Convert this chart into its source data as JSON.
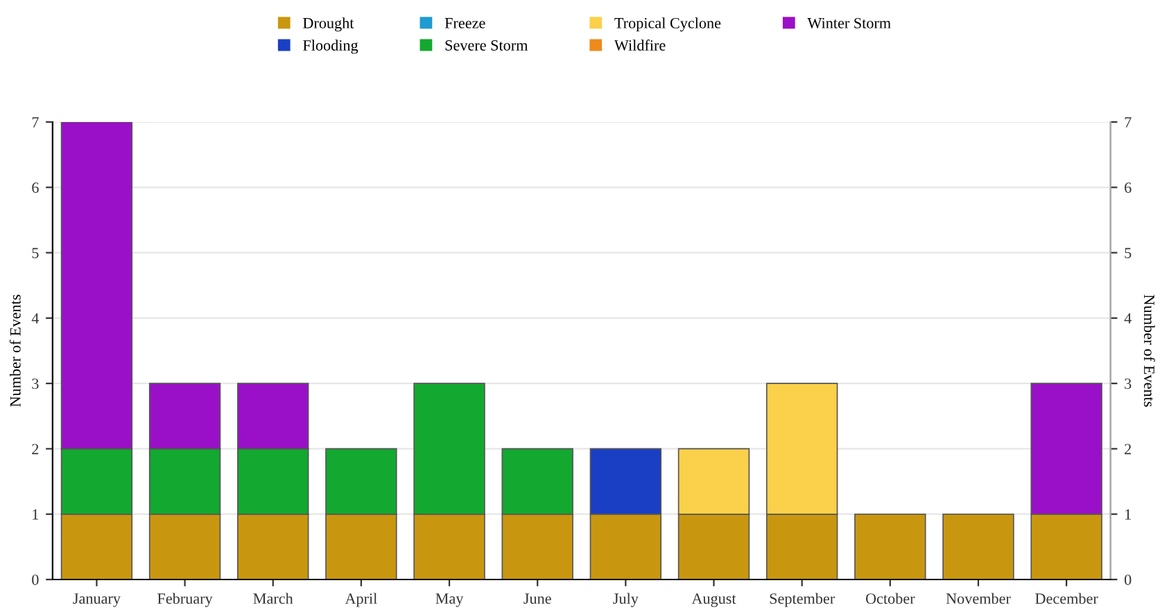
{
  "chart_data": {
    "type": "bar",
    "stacked": true,
    "categories": [
      "January",
      "February",
      "March",
      "April",
      "May",
      "June",
      "July",
      "August",
      "September",
      "October",
      "November",
      "December"
    ],
    "series": [
      {
        "name": "Drought",
        "color": "#c9970f",
        "values": [
          1,
          1,
          1,
          1,
          1,
          1,
          1,
          1,
          1,
          1,
          1,
          1
        ]
      },
      {
        "name": "Flooding",
        "color": "#1b3fc4",
        "values": [
          0,
          0,
          0,
          0,
          0,
          0,
          1,
          0,
          0,
          0,
          0,
          0
        ]
      },
      {
        "name": "Freeze",
        "color": "#1e9bd0",
        "values": [
          0,
          0,
          0,
          0,
          0,
          0,
          0,
          0,
          0,
          0,
          0,
          0
        ]
      },
      {
        "name": "Severe Storm",
        "color": "#13a830",
        "values": [
          1,
          1,
          1,
          1,
          2,
          1,
          0,
          0,
          0,
          0,
          0,
          0
        ]
      },
      {
        "name": "Tropical Cyclone",
        "color": "#fbd04a",
        "values": [
          0,
          0,
          0,
          0,
          0,
          0,
          0,
          1,
          2,
          0,
          0,
          0
        ]
      },
      {
        "name": "Wildfire",
        "color": "#ee8a1c",
        "values": [
          0,
          0,
          0,
          0,
          0,
          0,
          0,
          0,
          0,
          0,
          0,
          0
        ]
      },
      {
        "name": "Winter Storm",
        "color": "#9a10c8",
        "values": [
          5,
          1,
          1,
          0,
          0,
          0,
          0,
          0,
          0,
          0,
          0,
          2
        ]
      }
    ],
    "ylabel": "Number of Events",
    "y2label": "Number of Events",
    "ylim": [
      0,
      7
    ],
    "yticks": [
      0,
      1,
      2,
      3,
      4,
      5,
      6,
      7
    ],
    "y2lim": [
      0,
      7
    ],
    "y2ticks": [
      0,
      1,
      2,
      3,
      4,
      5,
      6,
      7
    ],
    "grid": "y",
    "legend": "top"
  }
}
